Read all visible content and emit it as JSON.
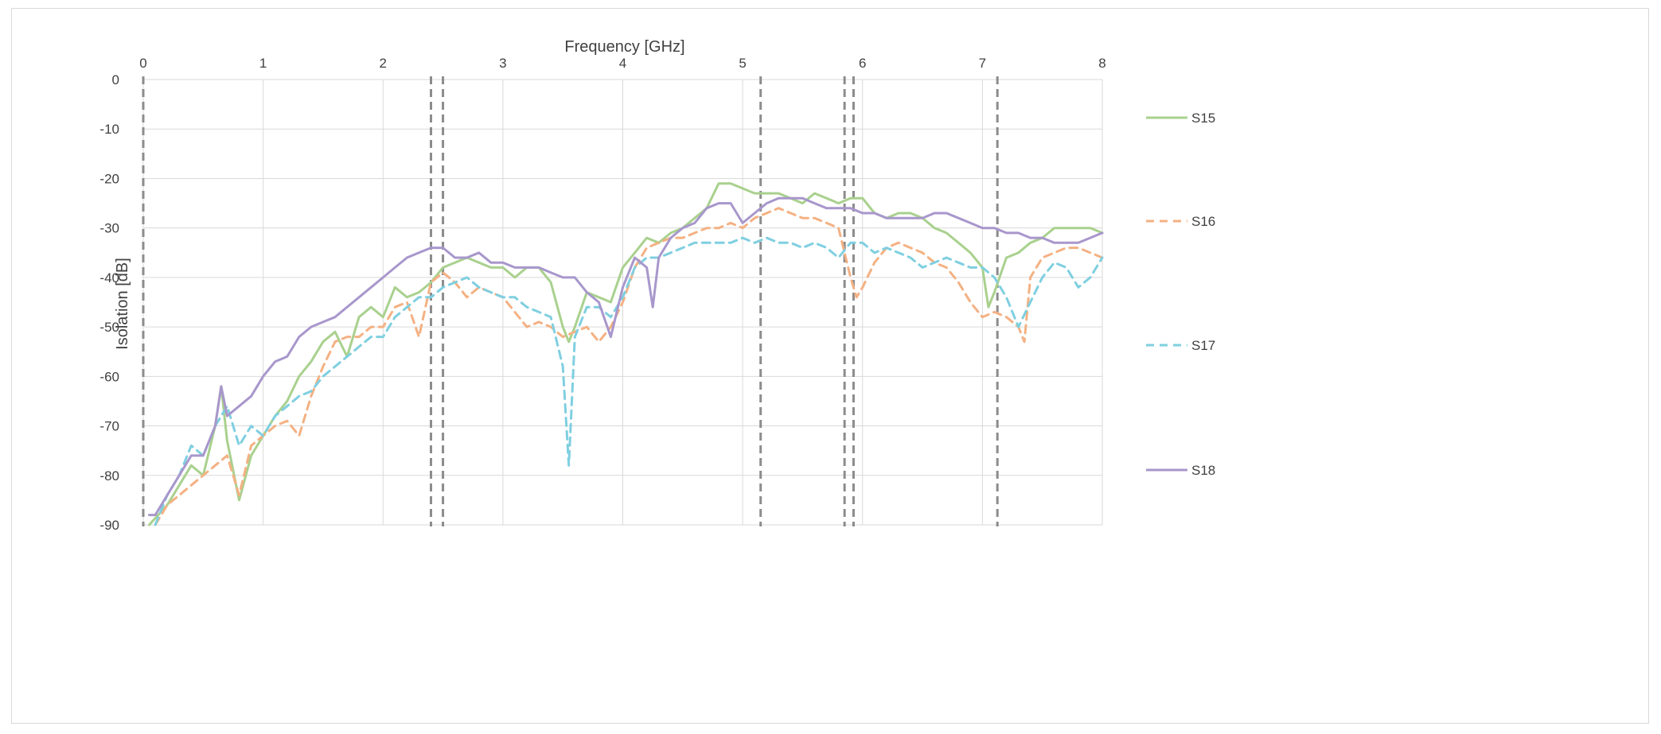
{
  "chart_data": {
    "type": "line",
    "xlabel": "Frequency [GHz]",
    "ylabel": "Isolation [dB]",
    "xlim": [
      0,
      8
    ],
    "ylim": [
      -90,
      0
    ],
    "x_ticks": [
      "0",
      "1",
      "2",
      "3",
      "4",
      "5",
      "6",
      "7",
      "8"
    ],
    "y_ticks": [
      "0",
      "-10",
      "-20",
      "-30",
      "-40",
      "-50",
      "-60",
      "-70",
      "-80",
      "-90"
    ],
    "x_axis_position": "top",
    "grid": true,
    "legend_position": "right",
    "vertical_markers_ghz": [
      0,
      2.4,
      2.5,
      5.15,
      5.85,
      5.925,
      7.125
    ],
    "series": [
      {
        "name": "S15",
        "color": "#a9d18e",
        "dash": "solid",
        "x": [
          0.05,
          0.2,
          0.3,
          0.4,
          0.5,
          0.6,
          0.65,
          0.7,
          0.8,
          0.9,
          1.0,
          1.1,
          1.2,
          1.3,
          1.4,
          1.5,
          1.6,
          1.7,
          1.8,
          1.9,
          2.0,
          2.1,
          2.2,
          2.3,
          2.4,
          2.5,
          2.6,
          2.7,
          2.8,
          2.9,
          3.0,
          3.1,
          3.2,
          3.3,
          3.4,
          3.5,
          3.55,
          3.6,
          3.7,
          3.8,
          3.9,
          4.0,
          4.1,
          4.2,
          4.3,
          4.4,
          4.5,
          4.6,
          4.7,
          4.8,
          4.9,
          5.0,
          5.1,
          5.2,
          5.3,
          5.4,
          5.5,
          5.6,
          5.7,
          5.8,
          5.9,
          6.0,
          6.1,
          6.2,
          6.3,
          6.4,
          6.5,
          6.6,
          6.7,
          6.8,
          6.9,
          7.0,
          7.05,
          7.1,
          7.2,
          7.3,
          7.4,
          7.5,
          7.6,
          7.7,
          7.8,
          7.9,
          8.0
        ],
        "y": [
          -90,
          -86,
          -82,
          -78,
          -80,
          -70,
          -62,
          -73,
          -85,
          -76,
          -72,
          -68,
          -65,
          -60,
          -57,
          -53,
          -51,
          -56,
          -48,
          -46,
          -48,
          -42,
          -44,
          -43,
          -41,
          -38,
          -37,
          -36,
          -37,
          -38,
          -38,
          -40,
          -38,
          -38,
          -41,
          -50,
          -53,
          -50,
          -43,
          -44,
          -45,
          -38,
          -35,
          -32,
          -33,
          -31,
          -30,
          -28,
          -26,
          -21,
          -21,
          -22,
          -23,
          -23,
          -23,
          -24,
          -25,
          -23,
          -24,
          -25,
          -24,
          -24,
          -27,
          -28,
          -27,
          -27,
          -28,
          -30,
          -31,
          -33,
          -35,
          -38,
          -46,
          -43,
          -36,
          -35,
          -33,
          -32,
          -30,
          -30,
          -30,
          -30,
          -31
        ]
      },
      {
        "name": "S16",
        "color": "#f4b183",
        "dash": "dashed",
        "x": [
          0.1,
          0.2,
          0.3,
          0.4,
          0.5,
          0.6,
          0.7,
          0.8,
          0.9,
          1.0,
          1.1,
          1.2,
          1.3,
          1.4,
          1.5,
          1.6,
          1.7,
          1.8,
          1.9,
          2.0,
          2.1,
          2.2,
          2.3,
          2.4,
          2.5,
          2.6,
          2.7,
          2.8,
          2.9,
          3.0,
          3.1,
          3.2,
          3.3,
          3.4,
          3.5,
          3.6,
          3.7,
          3.8,
          3.9,
          4.0,
          4.1,
          4.2,
          4.3,
          4.4,
          4.5,
          4.6,
          4.7,
          4.8,
          4.9,
          5.0,
          5.1,
          5.2,
          5.3,
          5.4,
          5.5,
          5.6,
          5.7,
          5.8,
          5.9,
          5.95,
          6.0,
          6.1,
          6.2,
          6.3,
          6.4,
          6.5,
          6.6,
          6.7,
          6.8,
          6.9,
          7.0,
          7.1,
          7.2,
          7.3,
          7.35,
          7.4,
          7.5,
          7.6,
          7.7,
          7.8,
          7.9,
          8.0
        ],
        "y": [
          -90,
          -86,
          -84,
          -82,
          -80,
          -78,
          -76,
          -84,
          -74,
          -72,
          -70,
          -69,
          -72,
          -64,
          -58,
          -53,
          -52,
          -52,
          -50,
          -50,
          -46,
          -45,
          -52,
          -41,
          -39,
          -41,
          -44,
          -42,
          -43,
          -44,
          -47,
          -50,
          -49,
          -50,
          -52,
          -51,
          -50,
          -53,
          -50,
          -45,
          -38,
          -34,
          -33,
          -32,
          -32,
          -31,
          -30,
          -30,
          -29,
          -30,
          -28,
          -27,
          -26,
          -27,
          -28,
          -28,
          -29,
          -30,
          -40,
          -44,
          -42,
          -37,
          -34,
          -33,
          -34,
          -35,
          -37,
          -38,
          -41,
          -45,
          -48,
          -47,
          -48,
          -50,
          -53,
          -40,
          -36,
          -35,
          -34,
          -34,
          -35,
          -36
        ]
      },
      {
        "name": "S17",
        "color": "#7fcfe0",
        "dash": "dashed",
        "x": [
          0.1,
          0.2,
          0.3,
          0.4,
          0.5,
          0.6,
          0.7,
          0.8,
          0.9,
          1.0,
          1.1,
          1.2,
          1.3,
          1.4,
          1.5,
          1.6,
          1.7,
          1.8,
          1.9,
          2.0,
          2.1,
          2.2,
          2.3,
          2.4,
          2.5,
          2.6,
          2.7,
          2.8,
          2.9,
          3.0,
          3.1,
          3.2,
          3.3,
          3.4,
          3.5,
          3.55,
          3.6,
          3.7,
          3.8,
          3.9,
          4.0,
          4.1,
          4.2,
          4.3,
          4.4,
          4.5,
          4.6,
          4.7,
          4.8,
          4.9,
          5.0,
          5.1,
          5.2,
          5.3,
          5.4,
          5.5,
          5.6,
          5.7,
          5.8,
          5.9,
          6.0,
          6.1,
          6.2,
          6.3,
          6.4,
          6.5,
          6.6,
          6.7,
          6.8,
          6.9,
          7.0,
          7.1,
          7.2,
          7.3,
          7.4,
          7.5,
          7.6,
          7.7,
          7.8,
          7.9,
          8.0
        ],
        "y": [
          -90,
          -84,
          -80,
          -74,
          -76,
          -70,
          -66,
          -74,
          -70,
          -72,
          -68,
          -66,
          -64,
          -63,
          -60,
          -58,
          -56,
          -54,
          -52,
          -52,
          -48,
          -46,
          -44,
          -44,
          -42,
          -41,
          -40,
          -42,
          -43,
          -44,
          -44,
          -46,
          -47,
          -48,
          -58,
          -78,
          -52,
          -46,
          -46,
          -48,
          -44,
          -38,
          -36,
          -36,
          -35,
          -34,
          -33,
          -33,
          -33,
          -33,
          -32,
          -33,
          -32,
          -33,
          -33,
          -34,
          -33,
          -34,
          -36,
          -33,
          -33,
          -35,
          -34,
          -35,
          -36,
          -38,
          -37,
          -36,
          -37,
          -38,
          -38,
          -40,
          -44,
          -50,
          -45,
          -40,
          -37,
          -38,
          -42,
          -40,
          -36
        ]
      },
      {
        "name": "S18",
        "color": "#a897cc",
        "dash": "solid",
        "x": [
          0.05,
          0.1,
          0.2,
          0.3,
          0.4,
          0.5,
          0.6,
          0.65,
          0.7,
          0.8,
          0.9,
          1.0,
          1.1,
          1.2,
          1.3,
          1.4,
          1.5,
          1.6,
          1.7,
          1.8,
          1.9,
          2.0,
          2.1,
          2.2,
          2.3,
          2.4,
          2.5,
          2.6,
          2.7,
          2.8,
          2.9,
          3.0,
          3.1,
          3.2,
          3.3,
          3.4,
          3.5,
          3.6,
          3.7,
          3.8,
          3.9,
          4.0,
          4.1,
          4.2,
          4.25,
          4.3,
          4.4,
          4.5,
          4.6,
          4.7,
          4.8,
          4.9,
          4.95,
          5.0,
          5.1,
          5.2,
          5.3,
          5.4,
          5.5,
          5.6,
          5.7,
          5.8,
          5.9,
          6.0,
          6.1,
          6.2,
          6.3,
          6.4,
          6.5,
          6.6,
          6.7,
          6.8,
          6.9,
          7.0,
          7.1,
          7.2,
          7.3,
          7.4,
          7.5,
          7.6,
          7.7,
          7.8,
          7.9,
          8.0
        ],
        "y": [
          -88,
          -88,
          -84,
          -80,
          -76,
          -76,
          -70,
          -62,
          -68,
          -66,
          -64,
          -60,
          -57,
          -56,
          -52,
          -50,
          -49,
          -48,
          -46,
          -44,
          -42,
          -40,
          -38,
          -36,
          -35,
          -34,
          -34,
          -36,
          -36,
          -35,
          -37,
          -37,
          -38,
          -38,
          -38,
          -39,
          -40,
          -40,
          -43,
          -45,
          -52,
          -42,
          -36,
          -38,
          -46,
          -36,
          -32,
          -30,
          -29,
          -26,
          -25,
          -25,
          -27,
          -29,
          -27,
          -25,
          -24,
          -24,
          -24,
          -25,
          -26,
          -26,
          -26,
          -27,
          -27,
          -28,
          -28,
          -28,
          -28,
          -27,
          -27,
          -28,
          -29,
          -30,
          -30,
          -31,
          -31,
          -32,
          -32,
          -33,
          -33,
          -33,
          -32,
          -31
        ]
      }
    ]
  }
}
